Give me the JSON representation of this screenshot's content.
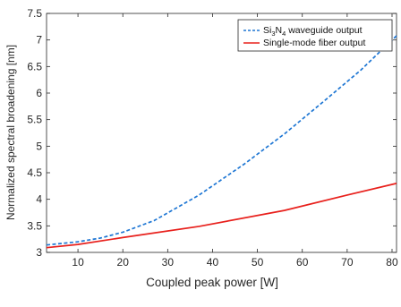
{
  "chart_data": {
    "type": "line",
    "title": "",
    "xlabel": "Coupled peak power [W]",
    "ylabel": "Normalized spectral broadening [nm]",
    "xlim": [
      3,
      81
    ],
    "ylim": [
      3,
      7.5
    ],
    "xticks": [
      10,
      20,
      30,
      40,
      50,
      60,
      70,
      80
    ],
    "yticks": [
      3,
      3.5,
      4,
      4.5,
      5,
      5.5,
      6,
      6.5,
      7,
      7.5
    ],
    "xtick_labels": [
      "10",
      "20",
      "30",
      "40",
      "50",
      "60",
      "70",
      "80"
    ],
    "ytick_labels": [
      "3",
      "3.5",
      "4",
      "4.5",
      "5",
      "5.5",
      "6",
      "6.5",
      "7",
      "7.5"
    ],
    "grid": false,
    "legend_position": "top-right",
    "series": [
      {
        "name_parts": [
          "Si",
          "3",
          "N",
          "4",
          " waveguide output"
        ],
        "color": "#1f77d4",
        "style": "dashed",
        "x": [
          3,
          10,
          15,
          20,
          27,
          37,
          47,
          56,
          65,
          73,
          81
        ],
        "y": [
          3.14,
          3.2,
          3.27,
          3.38,
          3.6,
          4.08,
          4.66,
          5.23,
          5.86,
          6.43,
          7.08
        ]
      },
      {
        "name": "Single-mode fiber output",
        "color": "#e8201c",
        "style": "solid",
        "x": [
          3,
          10,
          20,
          37,
          56,
          70,
          81
        ],
        "y": [
          3.09,
          3.15,
          3.28,
          3.49,
          3.79,
          4.08,
          4.3
        ]
      }
    ]
  }
}
